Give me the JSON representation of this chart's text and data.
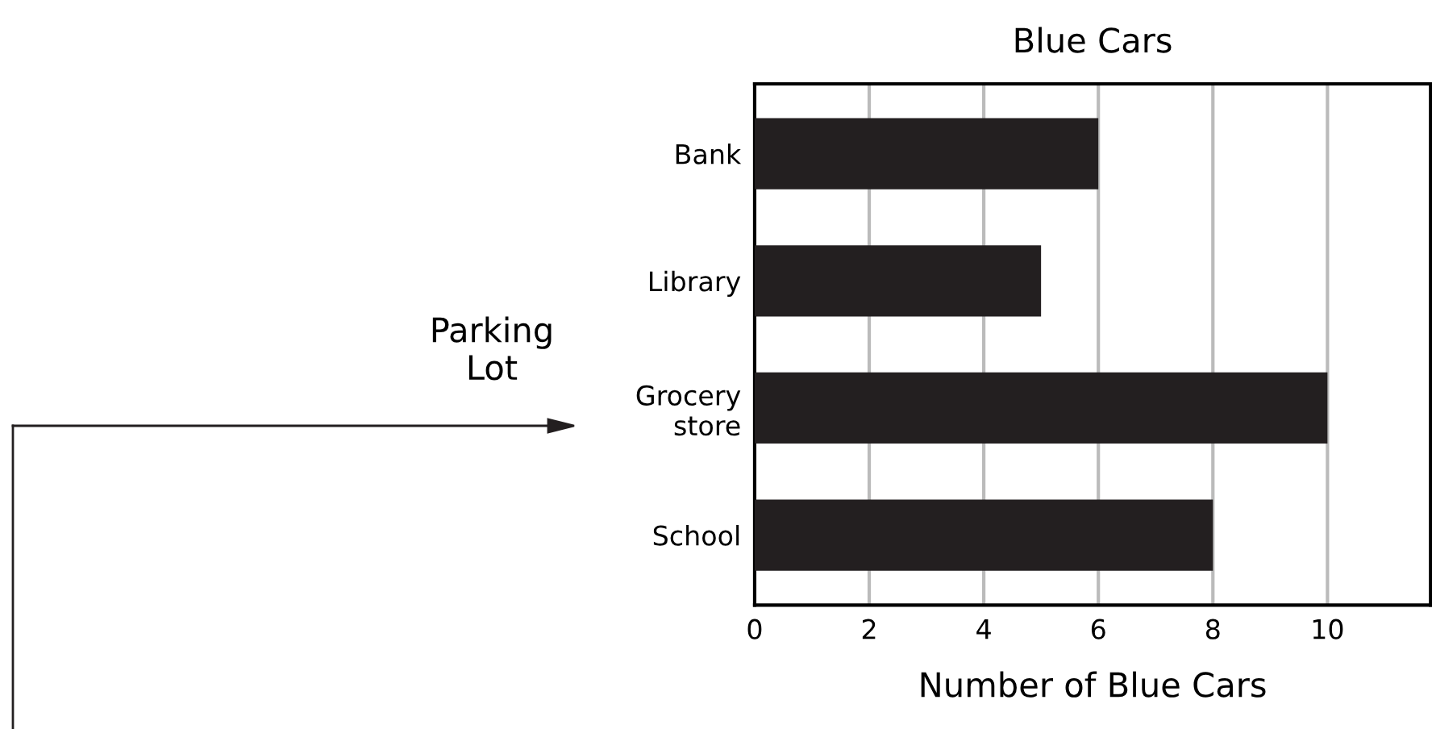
{
  "chart_data": {
    "type": "bar",
    "orientation": "horizontal",
    "title": "Blue Cars",
    "xlabel": "Number of Blue Cars",
    "ylabel": "Parking\nLot",
    "categories": [
      "Bank",
      "Library",
      "Grocery\nstore",
      "School"
    ],
    "values": [
      6,
      5,
      10,
      8
    ],
    "color": "#231f20",
    "xlim": [
      0,
      11.8
    ],
    "xticks": [
      0,
      2,
      4,
      6,
      8,
      10
    ],
    "grid": "x",
    "legend": false
  }
}
